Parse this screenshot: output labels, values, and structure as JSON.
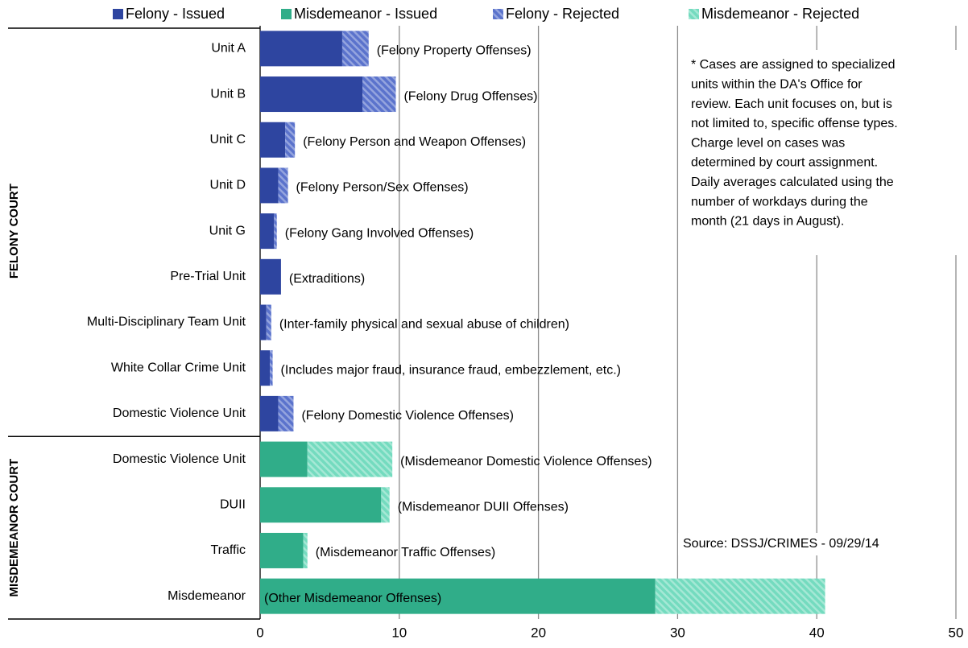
{
  "chart_data": {
    "type": "stacked_barh",
    "categories": [
      "Unit A",
      "Unit B",
      "Unit C",
      "Unit D",
      "Unit G",
      "Pre-Trial Unit",
      "Multi-Disciplinary Team Unit",
      "White Collar Crime Unit",
      "Domestic Violence Unit",
      "Domestic Violence Unit",
      "DUII",
      "Traffic",
      "Misdemeanor"
    ],
    "bar_annotations": [
      "(Felony Property Offenses)",
      "(Felony Drug Offenses)",
      "(Felony Person and Weapon Offenses)",
      "(Felony Person/Sex Offenses)",
      "(Felony Gang Involved Offenses)",
      "(Extraditions)",
      "(Inter-family physical and sexual abuse of children)",
      "(Includes major fraud, insurance fraud, embezzlement, etc.)",
      "(Felony Domestic Violence Offenses)",
      "(Misdemeanor Domestic Violence Offenses)",
      "(Misdemeanor DUII Offenses)",
      "(Misdemeanor Traffic Offenses)",
      "(Other Misdemeanor Offenses)"
    ],
    "groups": [
      {
        "label": "FELONY COURT",
        "count": 9
      },
      {
        "label": "MISDEMEANOR COURT",
        "count": 4
      }
    ],
    "series": [
      {
        "name": "Felony - Issued",
        "color": "#2e45a0",
        "pattern": "solid",
        "values": [
          5.9,
          7.35,
          1.8,
          1.3,
          1.0,
          1.5,
          0.45,
          0.7,
          1.3,
          null,
          null,
          null,
          null
        ]
      },
      {
        "name": "Misdemeanor - Issued",
        "color": "#30ad89",
        "pattern": "solid",
        "values": [
          null,
          null,
          null,
          null,
          null,
          null,
          null,
          null,
          null,
          3.4,
          8.7,
          3.1,
          28.4
        ]
      },
      {
        "name": "Felony - Rejected",
        "color": "#5b73cc",
        "pattern": "hatched",
        "values": [
          1.9,
          2.4,
          0.7,
          0.7,
          0.2,
          null,
          0.35,
          0.2,
          1.1,
          null,
          null,
          null,
          null
        ]
      },
      {
        "name": "Misdemeanor - Rejected",
        "color": "#74dbbf",
        "pattern": "hatched",
        "values": [
          null,
          null,
          null,
          null,
          null,
          null,
          null,
          null,
          null,
          6.1,
          0.6,
          0.3,
          12.2
        ]
      }
    ],
    "xlim": [
      0,
      50
    ],
    "xticks": [
      0,
      10,
      20,
      30,
      40,
      50
    ],
    "grid": true,
    "legend": "top",
    "note_lines": [
      "* Cases are assigned to specialized",
      "units within the DA's Office for",
      "review.  Each unit focuses on, but is",
      "not limited to, specific offense types.",
      "Charge level on cases was",
      "determined by court assignment.",
      "Daily averages calculated using the",
      "number of workdays during the",
      "month (21 days in August)."
    ],
    "source": "Source: DSSJ/CRIMES - 09/29/14"
  }
}
